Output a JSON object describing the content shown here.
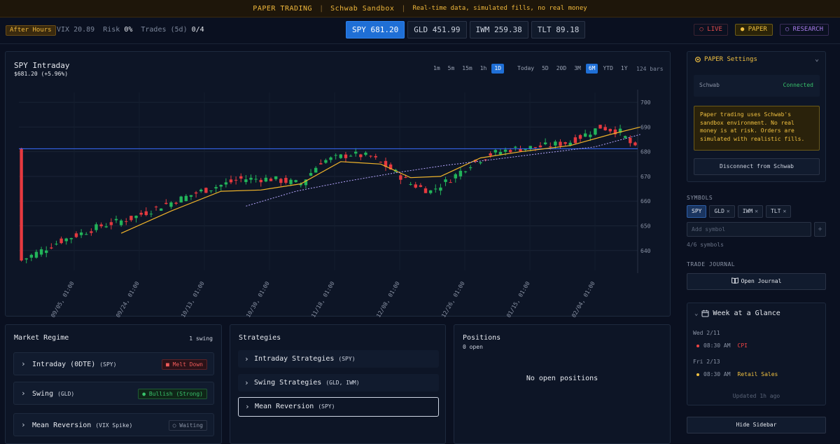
{
  "banner": {
    "title": "PAPER TRADING",
    "account": "Schwab Sandbox",
    "note": "Real-time data, simulated fills, no real money",
    "color": "#f0b83c"
  },
  "topbar": {
    "session": "After Hours",
    "vix_label": "VIX",
    "vix_value": "20.89",
    "risk_label": "Risk",
    "risk_value": "0%",
    "trades_label": "Trades (5d)",
    "trades_value": "0/4",
    "tickers": [
      {
        "symbol": "SPY",
        "price": "681.20",
        "active": true
      },
      {
        "symbol": "GLD",
        "price": "451.99",
        "active": false
      },
      {
        "symbol": "IWM",
        "price": "259.38",
        "active": false
      },
      {
        "symbol": "TLT",
        "price": "89.18",
        "active": false
      }
    ],
    "modes": {
      "live": "○ LIVE",
      "paper": "● PAPER",
      "research": "○ RESEARCH"
    }
  },
  "chart": {
    "title": "SPY Intraday",
    "subtitle": "$681.20 (+5.96%)",
    "intervals": [
      "1m",
      "5m",
      "15m",
      "1h",
      "1D"
    ],
    "active_interval": "1D",
    "ranges": [
      "Today",
      "5D",
      "20D",
      "3M",
      "6M",
      "YTD",
      "1Y"
    ],
    "active_range": "6M",
    "bars_label": "124 bars"
  },
  "chart_data": {
    "type": "candlestick",
    "y_ticks": [
      640,
      650,
      660,
      670,
      680,
      690,
      700
    ],
    "ylim": [
      632,
      704
    ],
    "x_tick_labels": [
      "09/05, 01:00",
      "09/24, 01:00",
      "10/13, 01:00",
      "10/30, 01:00",
      "11/18, 01:00",
      "12/08, 01:00",
      "12/26, 01:00",
      "01/15, 01:00",
      "02/04, 01:00"
    ],
    "bar_count": 124,
    "last_price": 681.2,
    "reference_line": 681.2,
    "series": [
      {
        "name": "",
        "style": "solid",
        "color": "#f0b42a",
        "values": [
          [
            20,
            647
          ],
          [
            30,
            656
          ],
          [
            40,
            664
          ],
          [
            48,
            664.5
          ],
          [
            56,
            667
          ],
          [
            64,
            676
          ],
          [
            72,
            675
          ],
          [
            78,
            669.5
          ],
          [
            84,
            670
          ],
          [
            92,
            677.5
          ],
          [
            100,
            680
          ],
          [
            110,
            682.5
          ],
          [
            118,
            687
          ],
          [
            124,
            690
          ]
        ]
      },
      {
        "name": "",
        "style": "dotted",
        "color": "#b7a7ff",
        "values": [
          [
            45,
            658
          ],
          [
            55,
            664
          ],
          [
            65,
            668
          ],
          [
            75,
            671.5
          ],
          [
            85,
            674.5
          ],
          [
            95,
            677
          ],
          [
            105,
            679.5
          ],
          [
            115,
            682
          ],
          [
            124,
            687
          ]
        ]
      }
    ],
    "colors": {
      "up": "#22b45a",
      "down": "#e5393f",
      "reference": "#3a6bff"
    }
  },
  "regime": {
    "title": "Market Regime",
    "meta": "1 swing",
    "rows": [
      {
        "label": "Intraday (0DTE)",
        "sub": "(SPY)",
        "badge": "■ Melt Down",
        "tone": "red"
      },
      {
        "label": "Swing",
        "sub": "(GLD)",
        "badge": "● Bullish (Strong)",
        "tone": "green"
      },
      {
        "label": "Mean Reversion",
        "sub": "(VIX Spike)",
        "badge": "○ Waiting",
        "tone": "gray"
      }
    ]
  },
  "strategies": {
    "title": "Strategies",
    "rows": [
      {
        "label": "Intraday Strategies",
        "sub": "(SPY)"
      },
      {
        "label": "Swing Strategies",
        "sub": "(GLD, IWM)"
      },
      {
        "label": "Mean Reversion",
        "sub": "(SPY)"
      }
    ]
  },
  "positions": {
    "title": "Positions",
    "count": "0 open",
    "empty": "No open positions"
  },
  "sidebar": {
    "settings_title": "PAPER Settings",
    "broker": "Schwab",
    "status": "Connected",
    "note": "Paper trading uses Schwab's sandbox environment. No real money is at risk. Orders are simulated with realistic fills.",
    "disconnect": "Disconnect from Schwab",
    "symbols_label": "SYMBOLS",
    "symbols": [
      "SPY",
      "GLD",
      "IWM",
      "TLT"
    ],
    "add_placeholder": "Add symbol",
    "add_btn": "+",
    "symbols_count": "4/6 symbols",
    "journal_label": "TRADE JOURNAL",
    "journal_btn": "Open Journal",
    "week_title": "Week at a Glance",
    "days": [
      {
        "day": "Wed 2/11",
        "events": [
          {
            "time": "08:30 AM",
            "name": "CPI",
            "color": "#ef4444"
          }
        ]
      },
      {
        "day": "Fri 2/13",
        "events": [
          {
            "time": "08:30 AM",
            "name": "Retail Sales",
            "color": "#f0c040"
          }
        ]
      }
    ],
    "updated": "Updated 1h ago",
    "hide": "Hide Sidebar"
  }
}
